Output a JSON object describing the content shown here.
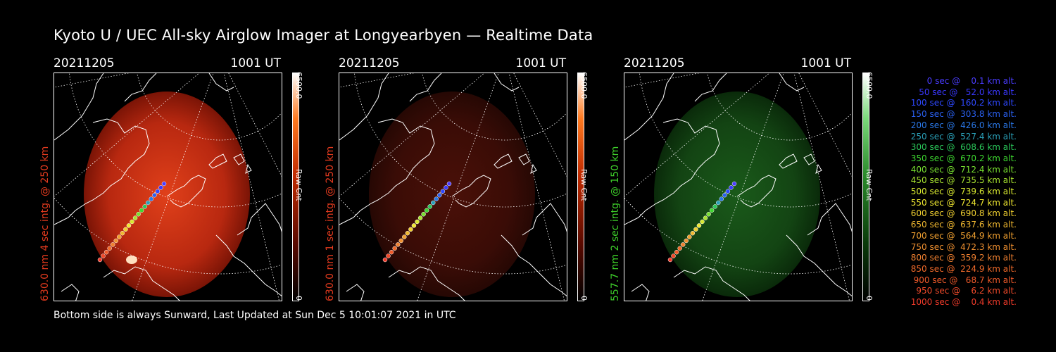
{
  "title": "Kyoto U / UEC All-sky Airglow Imager at Longyearbyen — Realtime Data",
  "footer": "Bottom side is always Sunward, Last Updated at Sun Dec  5 10:01:07 2021 in UTC",
  "panels": [
    {
      "date": "20211205",
      "time": "1001 UT",
      "side_label": "630.0 nm 4 sec intg. @ 250 km",
      "side_color": "#e23a1e",
      "cbar_max": "6500.0",
      "cbar_unit": "Raw Cnt",
      "cbar_min": "0",
      "emission": "red-bright"
    },
    {
      "date": "20211205",
      "time": "1001 UT",
      "side_label": "630.0 nm 1 sec intg. @ 250 km",
      "side_color": "#e23a1e",
      "cbar_max": "6500.0",
      "cbar_unit": "Raw Cnt",
      "cbar_min": "0",
      "emission": "red-dim"
    },
    {
      "date": "20211205",
      "time": "1001 UT",
      "side_label": "557.7 nm 2 sec intg. @ 150 km",
      "side_color": "#3ecf2a",
      "cbar_max": "6500.0",
      "cbar_unit": "Raw Cnt",
      "cbar_min": "0",
      "emission": "green"
    }
  ],
  "legend": [
    {
      "text": "   0 sec @    0.1 km alt.",
      "color": "#4a3cff"
    },
    {
      "text": "  50 sec @   52.0 km alt.",
      "color": "#3a38ff"
    },
    {
      "text": " 100 sec @  160.2 km alt.",
      "color": "#2e48ff"
    },
    {
      "text": " 150 sec @  303.8 km alt.",
      "color": "#2a60f0"
    },
    {
      "text": " 200 sec @  426.0 km alt.",
      "color": "#2a78e8"
    },
    {
      "text": " 250 sec @  527.4 km alt.",
      "color": "#2aa0b8"
    },
    {
      "text": " 300 sec @  608.6 km alt.",
      "color": "#2ac85a"
    },
    {
      "text": " 350 sec @  670.2 km alt.",
      "color": "#3ed830"
    },
    {
      "text": " 400 sec @  712.4 km alt.",
      "color": "#78e030"
    },
    {
      "text": " 450 sec @  735.5 km alt.",
      "color": "#a8e430"
    },
    {
      "text": " 500 sec @  739.6 km alt.",
      "color": "#d8e830"
    },
    {
      "text": " 550 sec @  724.7 km alt.",
      "color": "#f0e830"
    },
    {
      "text": " 600 sec @  690.8 km alt.",
      "color": "#f0d030"
    },
    {
      "text": " 650 sec @  637.6 km alt.",
      "color": "#f0b830"
    },
    {
      "text": " 700 sec @  564.9 km alt.",
      "color": "#f0a030"
    },
    {
      "text": " 750 sec @  472.3 km alt.",
      "color": "#f09030"
    },
    {
      "text": " 800 sec @  359.2 km alt.",
      "color": "#f08030"
    },
    {
      "text": " 850 sec @  224.9 km alt.",
      "color": "#f06a2a"
    },
    {
      "text": " 900 sec @   68.7 km alt.",
      "color": "#f05a2a"
    },
    {
      "text": " 950 sec @    6.2 km alt.",
      "color": "#f04a2a"
    },
    {
      "text": "1000 sec @    0.4 km alt.",
      "color": "#f03a2a"
    }
  ]
}
